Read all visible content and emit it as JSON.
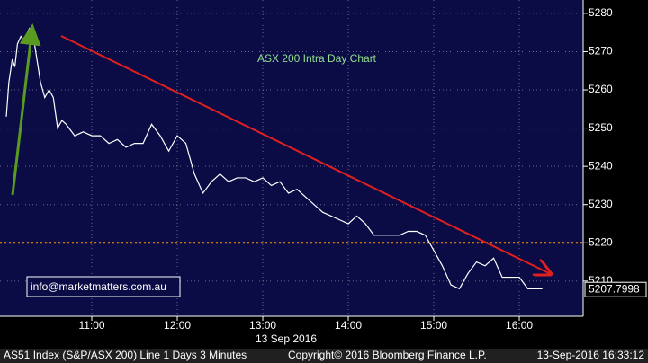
{
  "chart_data": {
    "type": "line",
    "title": "ASX 200 Intra Day Chart",
    "x_axis_label": "13 Sep 2016",
    "contact": "info@marketmatters.com.au",
    "footer": {
      "left": "AS51 Index (S&P/ASX 200) Line 1 Days 3 Minutes",
      "center": "Copyright© 2016 Bloomberg Finance L.P.",
      "right": "13-Sep-2016 16:33:12"
    },
    "x": [
      10.0,
      10.03,
      10.07,
      10.1,
      10.13,
      10.17,
      10.2,
      10.27,
      10.33,
      10.4,
      10.45,
      10.5,
      10.55,
      10.6,
      10.65,
      10.7,
      10.8,
      10.9,
      11.0,
      11.1,
      11.2,
      11.3,
      11.4,
      11.5,
      11.6,
      11.7,
      11.8,
      11.9,
      12.0,
      12.1,
      12.2,
      12.3,
      12.4,
      12.5,
      12.6,
      12.7,
      12.8,
      12.9,
      13.0,
      13.1,
      13.2,
      13.3,
      13.4,
      13.5,
      13.6,
      13.7,
      13.8,
      13.9,
      14.0,
      14.1,
      14.2,
      14.3,
      14.4,
      14.5,
      14.6,
      14.7,
      14.8,
      14.9,
      15.0,
      15.1,
      15.2,
      15.3,
      15.4,
      15.5,
      15.6,
      15.7,
      15.8,
      15.9,
      16.0,
      16.1,
      16.2,
      16.27
    ],
    "series": [
      {
        "name": "AS51 Index",
        "color": "#ffffff",
        "values": [
          5253,
          5262,
          5268,
          5266,
          5272,
          5274,
          5273,
          5276,
          5272,
          5262,
          5258,
          5260,
          5258,
          5250,
          5252,
          5251,
          5248,
          5249,
          5248,
          5248,
          5246,
          5247,
          5245,
          5246,
          5246,
          5251,
          5248,
          5244,
          5248,
          5246,
          5238,
          5233,
          5236,
          5238,
          5236,
          5237,
          5237,
          5236,
          5237,
          5235,
          5236,
          5233,
          5234,
          5232,
          5230,
          5228,
          5227,
          5226,
          5225,
          5227,
          5225,
          5222,
          5222,
          5222,
          5222,
          5223,
          5223,
          5222,
          5218,
          5214,
          5209,
          5208,
          5212,
          5215,
          5214,
          5216,
          5211,
          5211,
          5211,
          5208,
          5208,
          5208
        ]
      }
    ],
    "last_value": 5207.7998,
    "reference_line": 5220,
    "reference_color": "#ff9900",
    "xlim": [
      9.926,
      16.747
    ],
    "xticks": [
      {
        "value": 11,
        "label": "11:00"
      },
      {
        "value": 12,
        "label": "12:00"
      },
      {
        "value": 13,
        "label": "13:00"
      },
      {
        "value": 14,
        "label": "14:00"
      },
      {
        "value": 15,
        "label": "15:00"
      },
      {
        "value": 16,
        "label": "16:00"
      }
    ],
    "ylim": [
      5200.8,
      5283.5
    ],
    "yticks": [
      5210,
      5220,
      5230,
      5240,
      5250,
      5260,
      5270,
      5280
    ],
    "grid": true
  }
}
